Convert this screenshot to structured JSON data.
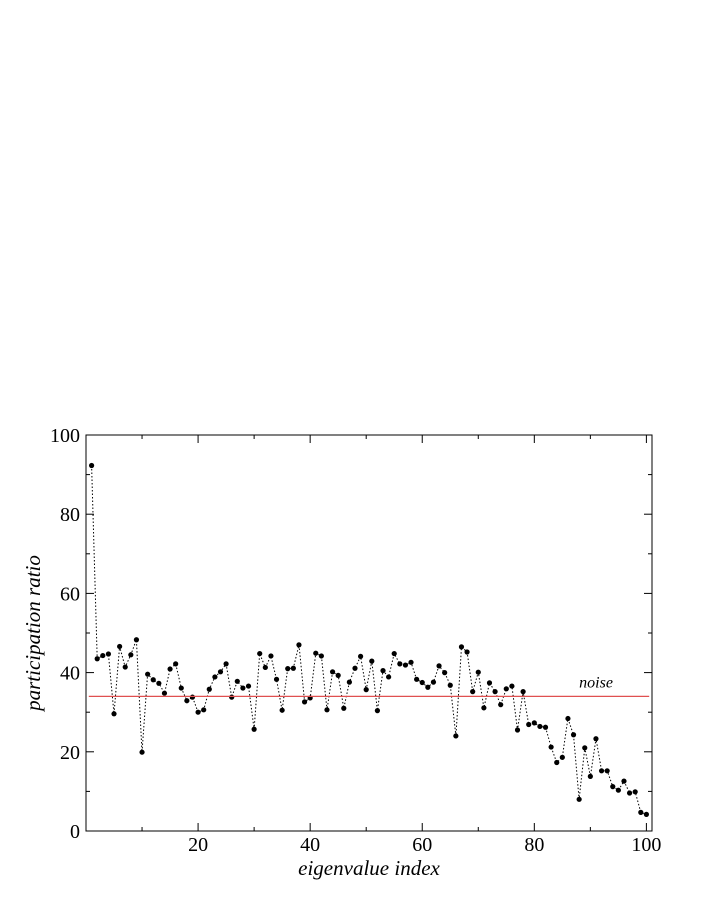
{
  "chart_data": {
    "type": "scatter",
    "title": "",
    "xlabel": "eigenvalue index",
    "ylabel": "participation ratio",
    "xlim": [
      0,
      101
    ],
    "ylim": [
      0,
      100
    ],
    "xticks": [
      20,
      40,
      60,
      80,
      100
    ],
    "yticks": [
      0,
      20,
      40,
      60,
      80,
      100
    ],
    "grid": false,
    "series": [
      {
        "style": "dotted line with filled circle markers",
        "color": "#000000",
        "x": [
          1,
          2,
          3,
          4,
          5,
          6,
          7,
          8,
          9,
          10,
          11,
          12,
          13,
          14,
          15,
          16,
          17,
          18,
          19,
          20,
          21,
          22,
          23,
          24,
          25,
          26,
          27,
          28,
          29,
          30,
          31,
          32,
          33,
          34,
          35,
          36,
          37,
          38,
          39,
          40,
          41,
          42,
          43,
          44,
          45,
          46,
          47,
          48,
          49,
          50,
          51,
          52,
          53,
          54,
          55,
          56,
          57,
          58,
          59,
          60,
          61,
          62,
          63,
          64,
          65,
          66,
          67,
          68,
          69,
          70,
          71,
          72,
          73,
          74,
          75,
          76,
          77,
          78,
          79,
          80,
          81,
          82,
          83,
          84,
          85,
          86,
          87,
          88,
          89,
          90,
          91,
          92,
          93,
          94,
          95,
          96,
          97,
          98,
          99,
          100
        ],
        "y": [
          92.3,
          43.5,
          44.3,
          44.7,
          29.6,
          46.6,
          41.4,
          44.5,
          48.3,
          19.9,
          39.6,
          38.2,
          37.3,
          34.8,
          40.9,
          42.2,
          36.1,
          32.9,
          33.8,
          30.0,
          30.6,
          35.8,
          38.9,
          40.2,
          42.2,
          33.8,
          37.8,
          36.1,
          36.6,
          25.7,
          44.8,
          41.3,
          44.2,
          38.3,
          30.5,
          41.0,
          41.1,
          47.0,
          32.6,
          33.6,
          44.9,
          44.2,
          30.6,
          40.2,
          39.3,
          31.0,
          37.6,
          41.1,
          44.1,
          35.7,
          42.9,
          30.4,
          40.5,
          38.9,
          44.8,
          42.2,
          41.9,
          42.6,
          38.3,
          37.5,
          36.3,
          37.6,
          41.7,
          40.0,
          36.8,
          24.0,
          46.5,
          45.2,
          35.2,
          40.1,
          31.1,
          37.4,
          35.2,
          31.9,
          35.9,
          36.6,
          25.5,
          35.2,
          26.9,
          27.3,
          26.4,
          26.2,
          21.2,
          17.3,
          18.6,
          28.4,
          24.3,
          8.0,
          21.0,
          13.8,
          23.3,
          15.2,
          15.2,
          11.2,
          10.3,
          12.6,
          9.6,
          9.9,
          4.7,
          4.2
        ]
      }
    ],
    "reference_line": {
      "y": 34,
      "color": "#e05050",
      "label": "noise"
    }
  }
}
